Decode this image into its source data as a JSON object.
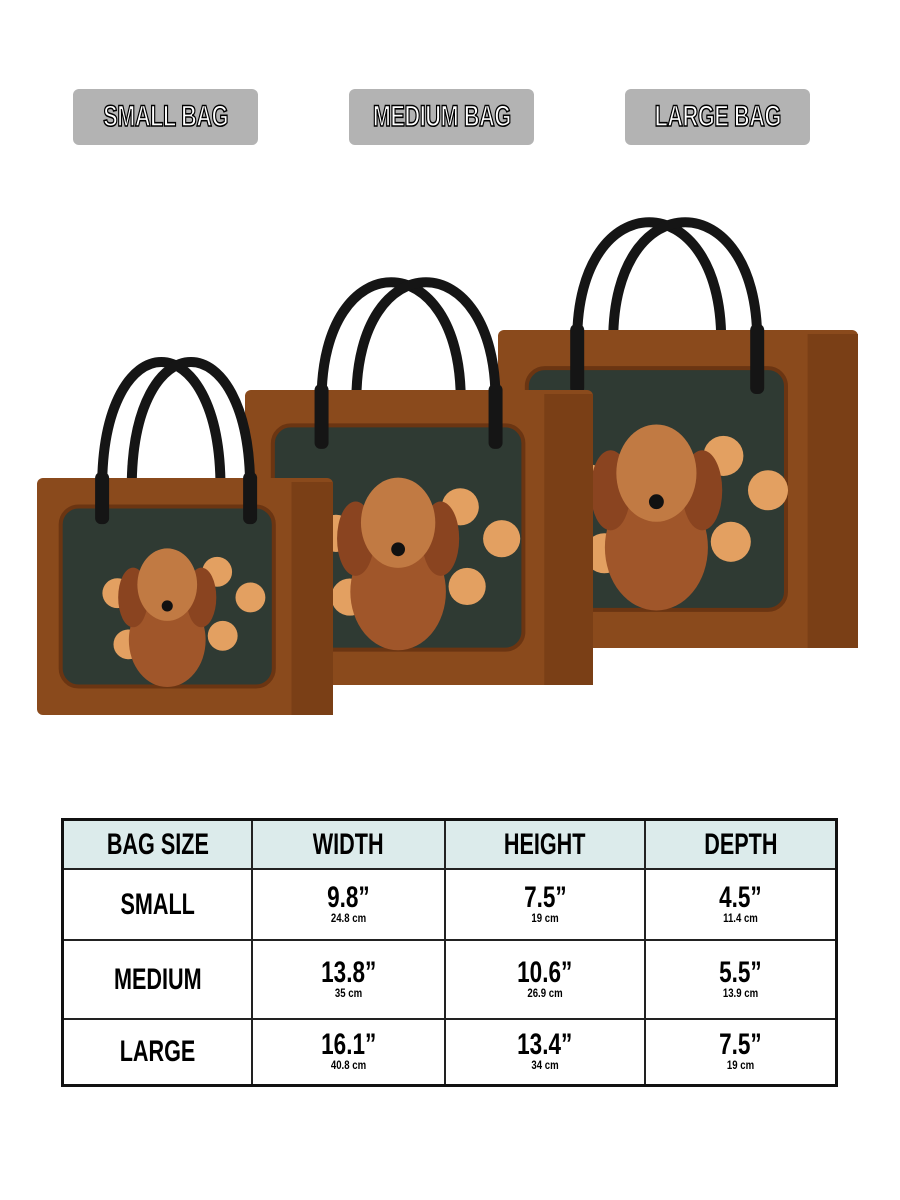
{
  "size_labels": [
    "SMALL BAG",
    "MEDIUM BAG",
    "LARGE BAG"
  ],
  "colors": {
    "label_bg": "#b3b3b3",
    "leather": "#8a4a1c",
    "handle": "#151515",
    "header_bg": "#dcebeb"
  },
  "table": {
    "headers": [
      "BAG SIZE",
      "WIDTH",
      "HEIGHT",
      "DEPTH"
    ],
    "rows": [
      {
        "size": "SMALL",
        "width": "9.8”",
        "width_cm": "24.8 cm",
        "height": "7.5”",
        "height_cm": "19 cm",
        "depth": "4.5”",
        "depth_cm": "11.4 cm"
      },
      {
        "size": "MEDIUM",
        "width": "13.8”",
        "width_cm": "35 cm",
        "height": "10.6”",
        "height_cm": "26.9 cm",
        "depth": "5.5”",
        "depth_cm": "13.9 cm"
      },
      {
        "size": "LARGE",
        "width": "16.1”",
        "width_cm": "40.8 cm",
        "height": "13.4”",
        "height_cm": "34 cm",
        "depth": "7.5”",
        "depth_cm": "19 cm"
      }
    ]
  }
}
